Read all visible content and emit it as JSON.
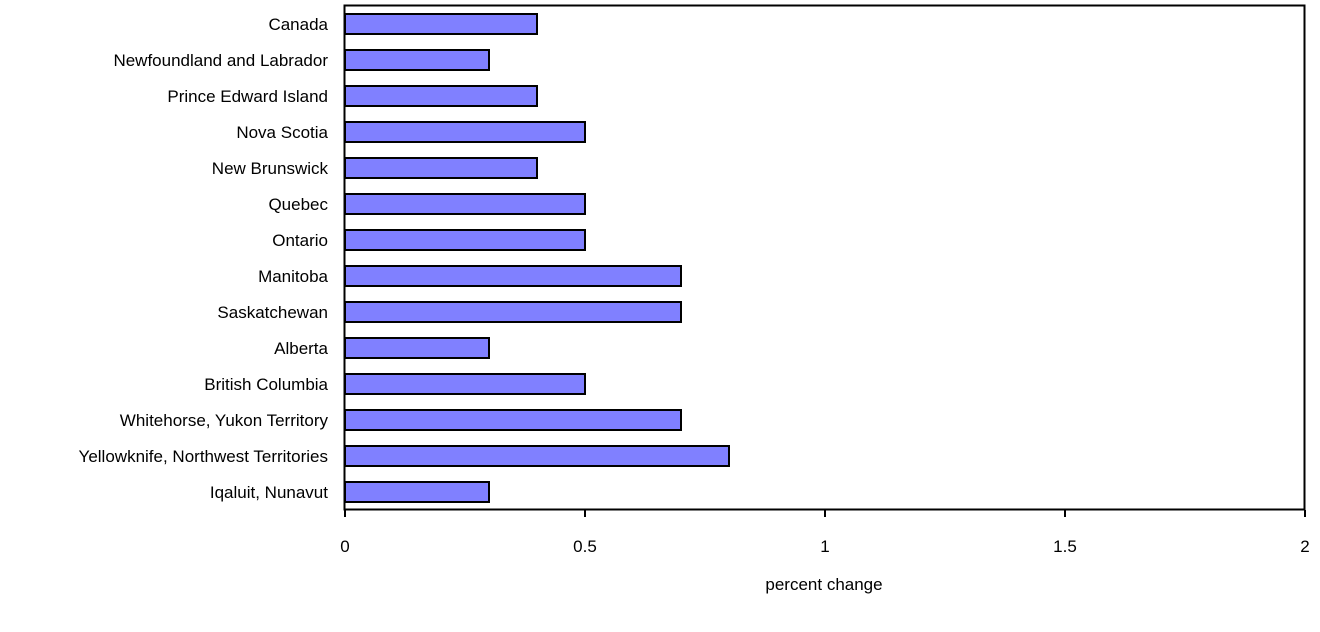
{
  "chart_data": {
    "type": "bar",
    "orientation": "horizontal",
    "categories": [
      "Canada",
      "Newfoundland and Labrador",
      "Prince Edward Island",
      "Nova Scotia",
      "New Brunswick",
      "Quebec",
      "Ontario",
      "Manitoba",
      "Saskatchewan",
      "Alberta",
      "British Columbia",
      "Whitehorse, Yukon Territory",
      "Yellowknife, Northwest Territories",
      "Iqaluit, Nunavut"
    ],
    "values": [
      0.4,
      0.3,
      0.4,
      0.5,
      0.4,
      0.5,
      0.5,
      0.7,
      0.7,
      0.3,
      0.5,
      0.7,
      0.8,
      0.3
    ],
    "xlabel": "percent change",
    "ylabel": "",
    "xlim": [
      0,
      2
    ],
    "xticks": [
      "0",
      "0.5",
      "1",
      "1.5",
      "2"
    ],
    "xtick_values": [
      0,
      0.5,
      1,
      1.5,
      2
    ],
    "grid": false,
    "legend": "none",
    "bar_color": "#8080ff",
    "bar_edge_color": "#000000"
  }
}
